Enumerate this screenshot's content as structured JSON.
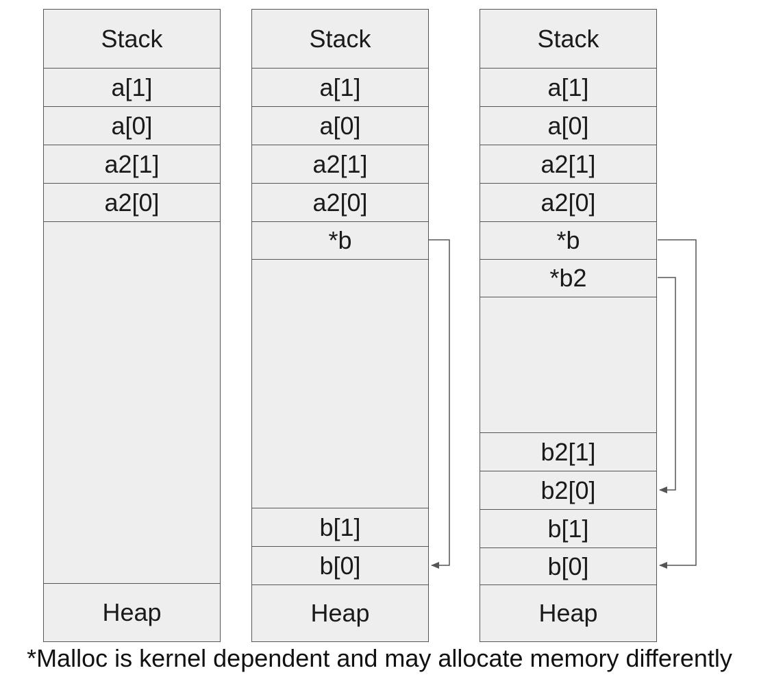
{
  "columns": [
    {
      "top_cells": [
        "Stack",
        "a[1]",
        "a[0]",
        "a2[1]",
        "a2[0]"
      ],
      "bottom_cells": [
        "Heap"
      ]
    },
    {
      "top_cells": [
        "Stack",
        "a[1]",
        "a[0]",
        "a2[1]",
        "a2[0]",
        "*b"
      ],
      "bottom_cells": [
        "b[1]",
        "b[0]",
        "Heap"
      ]
    },
    {
      "top_cells": [
        "Stack",
        "a[1]",
        "a[0]",
        "a2[1]",
        "a2[0]",
        "*b",
        "*b2"
      ],
      "bottom_cells": [
        "b2[1]",
        "b2[0]",
        "b[1]",
        "b[0]",
        "Heap"
      ]
    }
  ],
  "footnote": "*Malloc is kernel dependent and may allocate memory differently"
}
